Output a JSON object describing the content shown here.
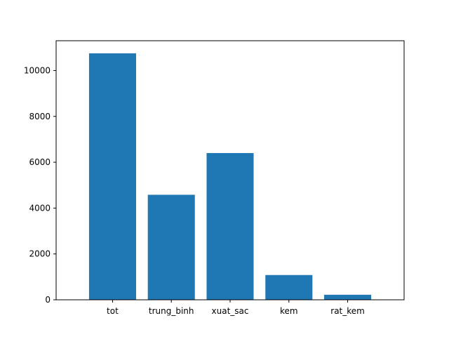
{
  "chart_data": {
    "type": "bar",
    "categories": [
      "tot",
      "trung_binh",
      "xuat_sac",
      "kem",
      "rat_kem"
    ],
    "values": [
      10750,
      4580,
      6400,
      1080,
      220
    ],
    "ylim": [
      0,
      11300
    ],
    "yticks": [
      0,
      2000,
      4000,
      6000,
      8000,
      10000
    ],
    "bar_color": "#1f77b4",
    "grid": false,
    "title": "",
    "xlabel": "",
    "ylabel": ""
  }
}
